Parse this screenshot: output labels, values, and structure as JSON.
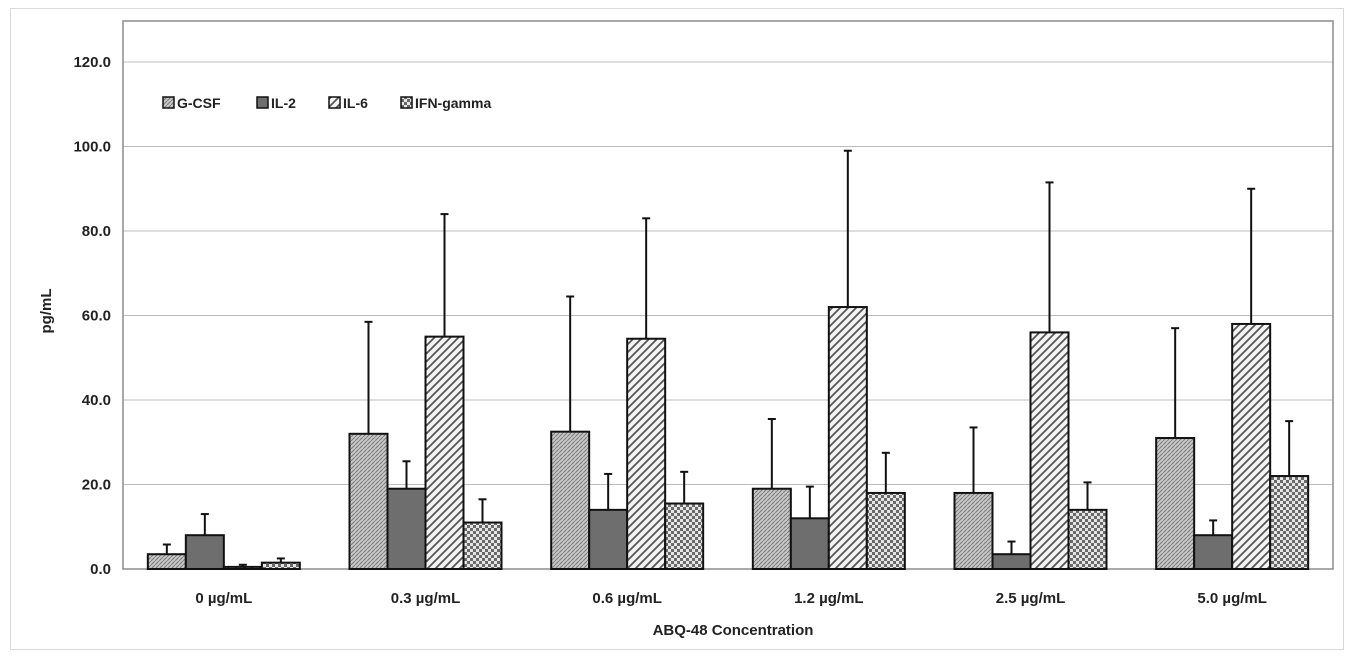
{
  "chart_data": {
    "type": "bar",
    "title": "",
    "xlabel": "ABQ-48 Concentration",
    "ylabel": "pg/mL",
    "ylim": [
      0,
      120
    ],
    "yticks": [
      0,
      20,
      40,
      60,
      80,
      100,
      120
    ],
    "ytick_labels": [
      "0.0",
      "20.0",
      "40.0",
      "60.0",
      "80.0",
      "100.0",
      "120.0"
    ],
    "grid": "horizontal",
    "legend_position": "top-left",
    "categories": [
      "0 µg/mL",
      "0.3 µg/mL",
      "0.6 µg/mL",
      "1.2 µg/mL",
      "2.5 µg/mL",
      "5.0 µg/mL"
    ],
    "series": [
      {
        "name": "G-CSF",
        "pattern": "dense-diagonal-gray",
        "values": [
          3.5,
          32.0,
          32.5,
          19.0,
          18.0,
          31.0
        ],
        "error_upper": [
          5.8,
          58.5,
          64.5,
          35.5,
          33.5,
          57.0
        ]
      },
      {
        "name": "IL-2",
        "pattern": "solid-dark-gray",
        "values": [
          8.0,
          19.0,
          14.0,
          12.0,
          3.5,
          8.0
        ],
        "error_upper": [
          13.0,
          25.5,
          22.5,
          19.5,
          6.5,
          11.5
        ]
      },
      {
        "name": "IL-6",
        "pattern": "wide-diagonal-stripes",
        "values": [
          0.5,
          55.0,
          54.5,
          62.0,
          56.0,
          58.0
        ],
        "error_upper": [
          1.0,
          84.0,
          83.0,
          99.0,
          91.5,
          90.0
        ]
      },
      {
        "name": "IFN-gamma",
        "pattern": "checker",
        "values": [
          1.5,
          11.0,
          15.5,
          18.0,
          14.0,
          22.0
        ],
        "error_upper": [
          2.5,
          16.5,
          23.0,
          27.5,
          20.5,
          35.0
        ]
      }
    ]
  }
}
